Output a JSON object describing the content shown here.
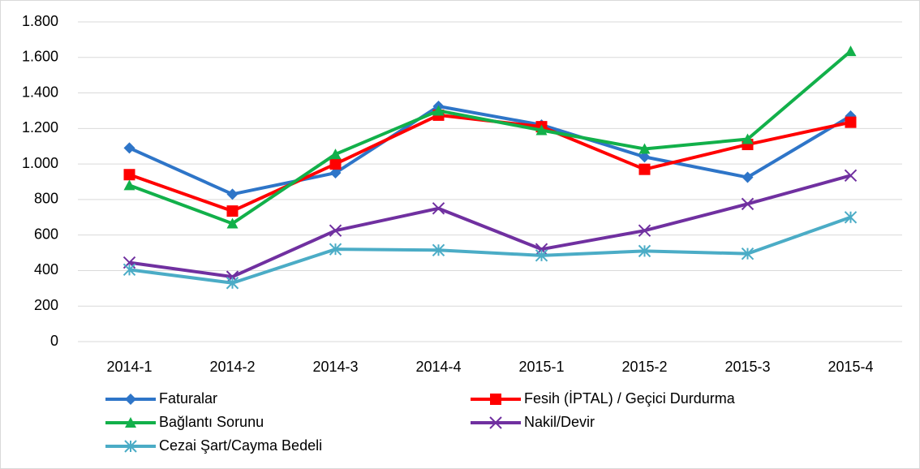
{
  "chart_data": {
    "type": "line",
    "categories": [
      "2014-1",
      "2014-2",
      "2014-3",
      "2014-4",
      "2015-1",
      "2015-2",
      "2015-3",
      "2015-4"
    ],
    "series": [
      {
        "name": "Faturalar",
        "color": "#2e75c8",
        "marker": "diamond",
        "values": [
          1090,
          830,
          950,
          1325,
          1220,
          1040,
          925,
          1270
        ]
      },
      {
        "name": "Fesih (İPTAL) / Geçici Durdurma",
        "color": "#ff0000",
        "marker": "square",
        "values": [
          940,
          735,
          1000,
          1275,
          1210,
          970,
          1110,
          1235
        ]
      },
      {
        "name": "Bağlantı Sorunu",
        "color": "#12b04a",
        "marker": "triangle",
        "values": [
          880,
          665,
          1055,
          1300,
          1190,
          1085,
          1140,
          1635
        ]
      },
      {
        "name": "Nakil/Devir",
        "color": "#7030a0",
        "marker": "cross",
        "values": [
          445,
          365,
          625,
          750,
          520,
          625,
          775,
          935
        ]
      },
      {
        "name": "Cezai Şart/Cayma Bedeli",
        "color": "#4bacc6",
        "marker": "star",
        "values": [
          405,
          330,
          520,
          515,
          485,
          510,
          495,
          700
        ]
      }
    ],
    "ylim": [
      0,
      1800
    ],
    "yticks": [
      0,
      200,
      400,
      600,
      800,
      {
        "value": 1000,
        "label": "1.000"
      },
      {
        "value": 1200,
        "label": "1.200"
      },
      {
        "value": 1400,
        "label": "1.400"
      },
      {
        "value": 1600,
        "label": "1.600"
      },
      {
        "value": 1800,
        "label": "1.800"
      }
    ],
    "grid": true,
    "legend": "bottom"
  }
}
